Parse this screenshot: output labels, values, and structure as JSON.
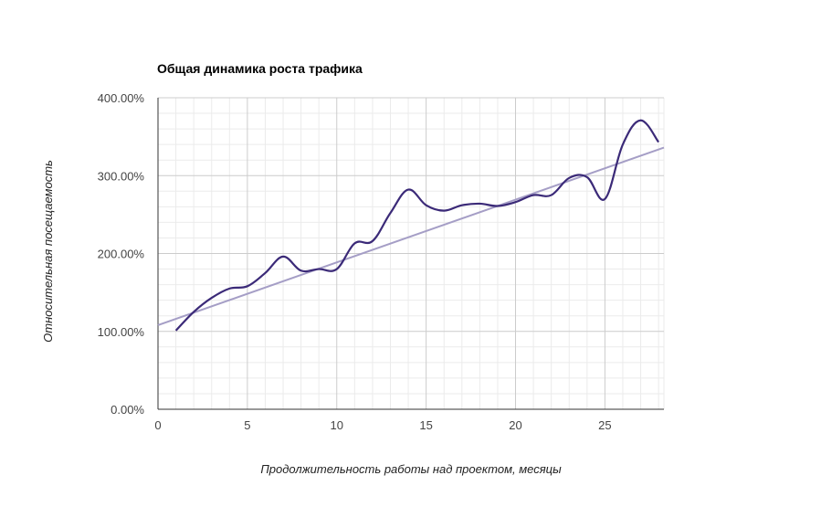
{
  "chart_data": {
    "type": "line",
    "title": "Общая динамика роста трафика",
    "xlabel": "Продолжительность работы над проектом, месяцы",
    "ylabel": "Относительная посещаемость",
    "xlim": [
      0,
      28.3
    ],
    "ylim": [
      0,
      400
    ],
    "x_ticks": [
      0,
      5,
      10,
      15,
      20,
      25
    ],
    "y_ticks": [
      0,
      100,
      200,
      300,
      400
    ],
    "y_tick_labels": [
      "0.00%",
      "100.00%",
      "200.00%",
      "300.00%",
      "400.00%"
    ],
    "grid": true,
    "legend": "none",
    "colors": {
      "series": "#3b2a78",
      "trend": "#a59ec6",
      "major_grid": "#cccccc",
      "minor_grid": "#ebebeb"
    },
    "series": [
      {
        "x": [
          1,
          2,
          3,
          4,
          5,
          6,
          7,
          8,
          9,
          10,
          11,
          12,
          13,
          14,
          15,
          16,
          17,
          18,
          19,
          20,
          21,
          22,
          23,
          24,
          25,
          26,
          27,
          28
        ],
        "values": [
          101,
          125,
          143,
          155,
          158,
          175,
          196,
          178,
          180,
          180,
          213,
          216,
          252,
          282,
          262,
          255,
          262,
          264,
          261,
          266,
          275,
          275,
          297,
          298,
          270,
          340,
          371,
          343
        ]
      }
    ],
    "trendline": {
      "type": "linear",
      "x": [
        0,
        28.3
      ],
      "values": [
        108,
        336
      ]
    }
  }
}
